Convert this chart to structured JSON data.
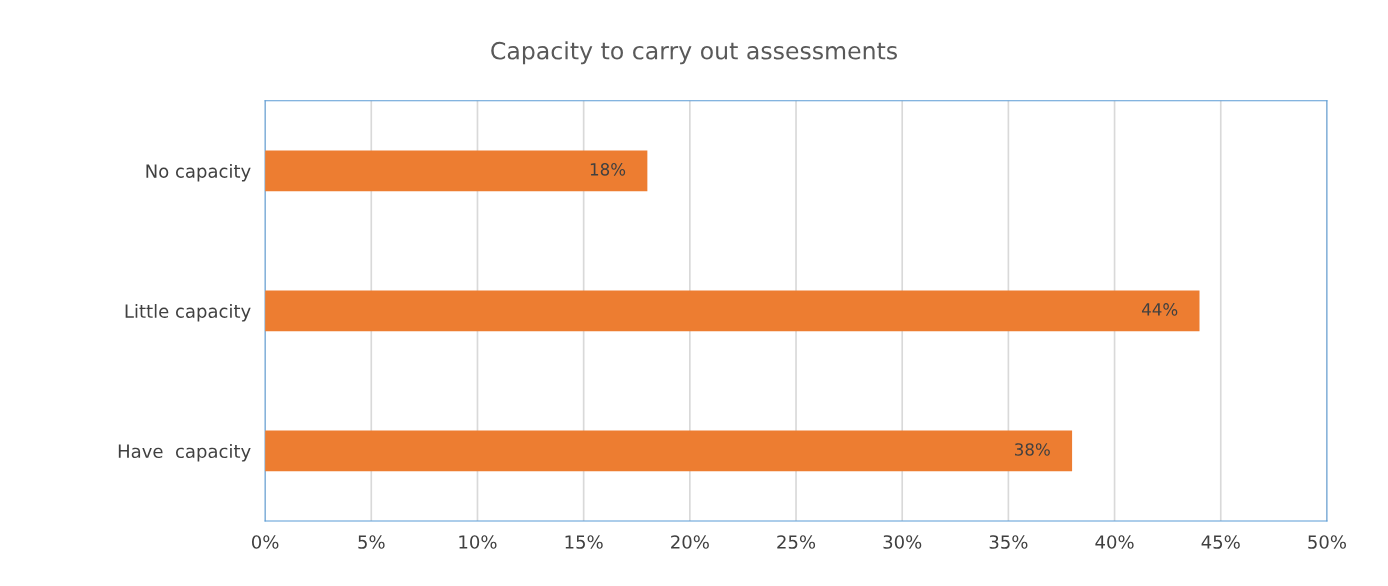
{
  "chart_data": {
    "type": "bar",
    "orientation": "horizontal",
    "title": "Capacity to carry out assessments",
    "categories": [
      "No capacity",
      "Little capacity",
      "Have  capacity"
    ],
    "values": [
      18,
      44,
      38
    ],
    "color": "#ed7d31",
    "value_labels": [
      "18%",
      "44%",
      "38%"
    ],
    "xlim": [
      0,
      50
    ],
    "xticks": [
      {
        "value": 0,
        "label": "0%"
      },
      {
        "value": 5,
        "label": "5%"
      },
      {
        "value": 10,
        "label": "10%"
      },
      {
        "value": 15,
        "label": "15%"
      },
      {
        "value": 20,
        "label": "20%"
      },
      {
        "value": 25,
        "label": "25%"
      },
      {
        "value": 30,
        "label": "30%"
      },
      {
        "value": 35,
        "label": "35%"
      },
      {
        "value": 40,
        "label": "40%"
      },
      {
        "value": 45,
        "label": "45%"
      },
      {
        "value": 50,
        "label": "50%"
      }
    ],
    "grid": "x"
  }
}
